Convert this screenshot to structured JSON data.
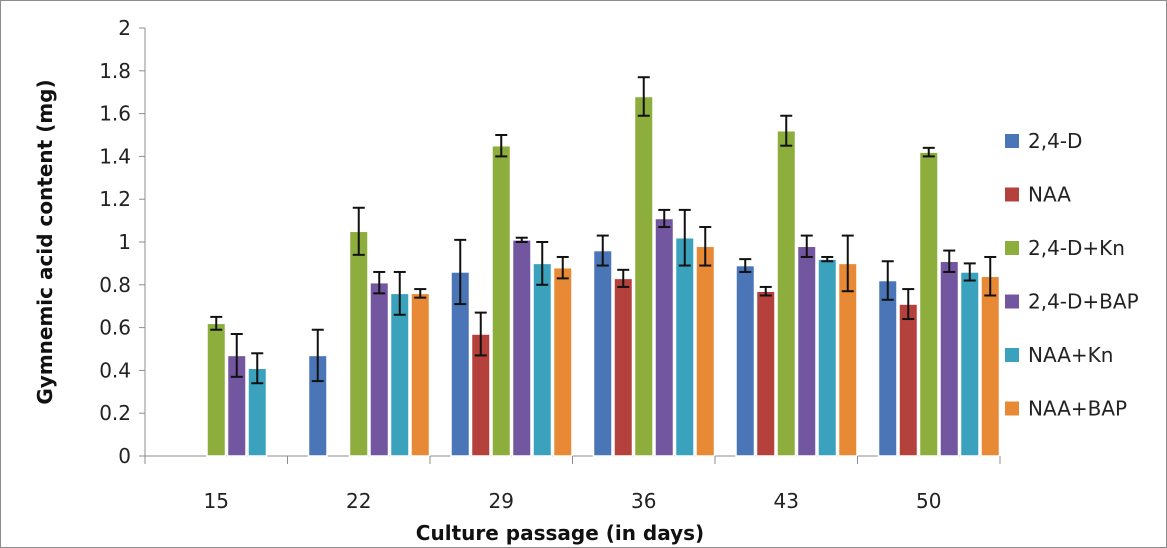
{
  "chart_data": {
    "type": "bar",
    "xlabel": "Culture passage  (in days)",
    "ylabel": "Gymnemic acid content  (mg)",
    "ylim": [
      0,
      2
    ],
    "yticks": [
      0,
      0.2,
      0.4,
      0.6,
      0.8,
      1,
      1.2,
      1.4,
      1.6,
      1.8,
      2
    ],
    "ytick_labels": [
      "0",
      "0.2",
      "0.4",
      "0.6",
      "0.8",
      "1",
      "1.2",
      "1.4",
      "1.6",
      "1.8",
      "2"
    ],
    "grid": false,
    "legend_position": "right",
    "categories": [
      "15",
      "22",
      "29",
      "36",
      "43",
      "50"
    ],
    "series": [
      {
        "name": "2,4-D",
        "color": "#4a76b7",
        "values": [
          null,
          0.47,
          0.86,
          0.96,
          0.89,
          0.82
        ],
        "errors": [
          null,
          0.12,
          0.15,
          0.07,
          0.03,
          0.09
        ]
      },
      {
        "name": "NAA",
        "color": "#b5413c",
        "values": [
          null,
          null,
          0.57,
          0.83,
          0.77,
          0.71
        ],
        "errors": [
          null,
          null,
          0.1,
          0.04,
          0.02,
          0.07
        ]
      },
      {
        "name": "2,4-D+Kn",
        "color": "#8dad3c",
        "values": [
          0.62,
          1.05,
          1.45,
          1.68,
          1.52,
          1.42
        ],
        "errors": [
          0.03,
          0.11,
          0.05,
          0.09,
          0.07,
          0.02
        ]
      },
      {
        "name": "2,4-D+BAP",
        "color": "#7356a0",
        "values": [
          0.47,
          0.81,
          1.01,
          1.11,
          0.98,
          0.91
        ],
        "errors": [
          0.1,
          0.05,
          0.01,
          0.04,
          0.05,
          0.05
        ]
      },
      {
        "name": "NAA+Kn",
        "color": "#3aa2bc",
        "values": [
          0.41,
          0.76,
          0.9,
          1.02,
          0.92,
          0.86
        ],
        "errors": [
          0.07,
          0.1,
          0.1,
          0.13,
          0.01,
          0.04
        ]
      },
      {
        "name": "NAA+BAP",
        "color": "#e88a35",
        "values": [
          null,
          0.76,
          0.88,
          0.98,
          0.9,
          0.84
        ],
        "errors": [
          null,
          0.02,
          0.05,
          0.09,
          0.13,
          0.09
        ]
      }
    ]
  }
}
